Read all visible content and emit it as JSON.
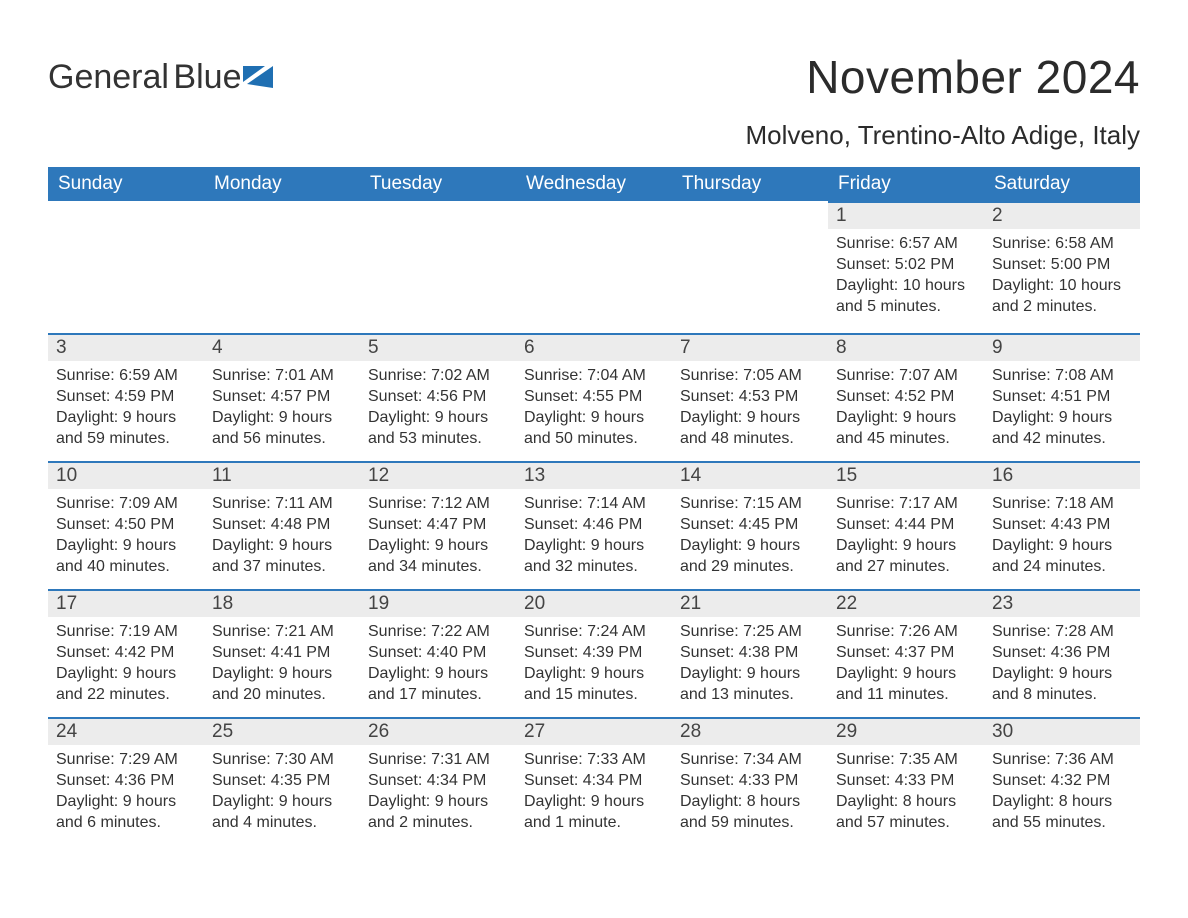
{
  "logo": {
    "text_top": "General",
    "text_bottom": "Blue",
    "mark_color": "#1f6fb2",
    "top_color": "#333333",
    "bottom_color": "#1f6fb2"
  },
  "title": "November 2024",
  "location": "Molveno, Trentino-Alto Adige, Italy",
  "colors": {
    "header_bg": "#2e78bb",
    "header_text": "#ffffff",
    "daynum_bg": "#ececec",
    "daynum_border": "#2e78bb",
    "body_text": "#333333",
    "page_bg": "#ffffff"
  },
  "weekdays": [
    "Sunday",
    "Monday",
    "Tuesday",
    "Wednesday",
    "Thursday",
    "Friday",
    "Saturday"
  ],
  "weeks": [
    [
      {
        "empty": true
      },
      {
        "empty": true
      },
      {
        "empty": true
      },
      {
        "empty": true
      },
      {
        "empty": true
      },
      {
        "day": "1",
        "sunrise": "Sunrise: 6:57 AM",
        "sunset": "Sunset: 5:02 PM",
        "daylight1": "Daylight: 10 hours",
        "daylight2": "and 5 minutes."
      },
      {
        "day": "2",
        "sunrise": "Sunrise: 6:58 AM",
        "sunset": "Sunset: 5:00 PM",
        "daylight1": "Daylight: 10 hours",
        "daylight2": "and 2 minutes."
      }
    ],
    [
      {
        "day": "3",
        "sunrise": "Sunrise: 6:59 AM",
        "sunset": "Sunset: 4:59 PM",
        "daylight1": "Daylight: 9 hours",
        "daylight2": "and 59 minutes."
      },
      {
        "day": "4",
        "sunrise": "Sunrise: 7:01 AM",
        "sunset": "Sunset: 4:57 PM",
        "daylight1": "Daylight: 9 hours",
        "daylight2": "and 56 minutes."
      },
      {
        "day": "5",
        "sunrise": "Sunrise: 7:02 AM",
        "sunset": "Sunset: 4:56 PM",
        "daylight1": "Daylight: 9 hours",
        "daylight2": "and 53 minutes."
      },
      {
        "day": "6",
        "sunrise": "Sunrise: 7:04 AM",
        "sunset": "Sunset: 4:55 PM",
        "daylight1": "Daylight: 9 hours",
        "daylight2": "and 50 minutes."
      },
      {
        "day": "7",
        "sunrise": "Sunrise: 7:05 AM",
        "sunset": "Sunset: 4:53 PM",
        "daylight1": "Daylight: 9 hours",
        "daylight2": "and 48 minutes."
      },
      {
        "day": "8",
        "sunrise": "Sunrise: 7:07 AM",
        "sunset": "Sunset: 4:52 PM",
        "daylight1": "Daylight: 9 hours",
        "daylight2": "and 45 minutes."
      },
      {
        "day": "9",
        "sunrise": "Sunrise: 7:08 AM",
        "sunset": "Sunset: 4:51 PM",
        "daylight1": "Daylight: 9 hours",
        "daylight2": "and 42 minutes."
      }
    ],
    [
      {
        "day": "10",
        "sunrise": "Sunrise: 7:09 AM",
        "sunset": "Sunset: 4:50 PM",
        "daylight1": "Daylight: 9 hours",
        "daylight2": "and 40 minutes."
      },
      {
        "day": "11",
        "sunrise": "Sunrise: 7:11 AM",
        "sunset": "Sunset: 4:48 PM",
        "daylight1": "Daylight: 9 hours",
        "daylight2": "and 37 minutes."
      },
      {
        "day": "12",
        "sunrise": "Sunrise: 7:12 AM",
        "sunset": "Sunset: 4:47 PM",
        "daylight1": "Daylight: 9 hours",
        "daylight2": "and 34 minutes."
      },
      {
        "day": "13",
        "sunrise": "Sunrise: 7:14 AM",
        "sunset": "Sunset: 4:46 PM",
        "daylight1": "Daylight: 9 hours",
        "daylight2": "and 32 minutes."
      },
      {
        "day": "14",
        "sunrise": "Sunrise: 7:15 AM",
        "sunset": "Sunset: 4:45 PM",
        "daylight1": "Daylight: 9 hours",
        "daylight2": "and 29 minutes."
      },
      {
        "day": "15",
        "sunrise": "Sunrise: 7:17 AM",
        "sunset": "Sunset: 4:44 PM",
        "daylight1": "Daylight: 9 hours",
        "daylight2": "and 27 minutes."
      },
      {
        "day": "16",
        "sunrise": "Sunrise: 7:18 AM",
        "sunset": "Sunset: 4:43 PM",
        "daylight1": "Daylight: 9 hours",
        "daylight2": "and 24 minutes."
      }
    ],
    [
      {
        "day": "17",
        "sunrise": "Sunrise: 7:19 AM",
        "sunset": "Sunset: 4:42 PM",
        "daylight1": "Daylight: 9 hours",
        "daylight2": "and 22 minutes."
      },
      {
        "day": "18",
        "sunrise": "Sunrise: 7:21 AM",
        "sunset": "Sunset: 4:41 PM",
        "daylight1": "Daylight: 9 hours",
        "daylight2": "and 20 minutes."
      },
      {
        "day": "19",
        "sunrise": "Sunrise: 7:22 AM",
        "sunset": "Sunset: 4:40 PM",
        "daylight1": "Daylight: 9 hours",
        "daylight2": "and 17 minutes."
      },
      {
        "day": "20",
        "sunrise": "Sunrise: 7:24 AM",
        "sunset": "Sunset: 4:39 PM",
        "daylight1": "Daylight: 9 hours",
        "daylight2": "and 15 minutes."
      },
      {
        "day": "21",
        "sunrise": "Sunrise: 7:25 AM",
        "sunset": "Sunset: 4:38 PM",
        "daylight1": "Daylight: 9 hours",
        "daylight2": "and 13 minutes."
      },
      {
        "day": "22",
        "sunrise": "Sunrise: 7:26 AM",
        "sunset": "Sunset: 4:37 PM",
        "daylight1": "Daylight: 9 hours",
        "daylight2": "and 11 minutes."
      },
      {
        "day": "23",
        "sunrise": "Sunrise: 7:28 AM",
        "sunset": "Sunset: 4:36 PM",
        "daylight1": "Daylight: 9 hours",
        "daylight2": "and 8 minutes."
      }
    ],
    [
      {
        "day": "24",
        "sunrise": "Sunrise: 7:29 AM",
        "sunset": "Sunset: 4:36 PM",
        "daylight1": "Daylight: 9 hours",
        "daylight2": "and 6 minutes."
      },
      {
        "day": "25",
        "sunrise": "Sunrise: 7:30 AM",
        "sunset": "Sunset: 4:35 PM",
        "daylight1": "Daylight: 9 hours",
        "daylight2": "and 4 minutes."
      },
      {
        "day": "26",
        "sunrise": "Sunrise: 7:31 AM",
        "sunset": "Sunset: 4:34 PM",
        "daylight1": "Daylight: 9 hours",
        "daylight2": "and 2 minutes."
      },
      {
        "day": "27",
        "sunrise": "Sunrise: 7:33 AM",
        "sunset": "Sunset: 4:34 PM",
        "daylight1": "Daylight: 9 hours",
        "daylight2": "and 1 minute."
      },
      {
        "day": "28",
        "sunrise": "Sunrise: 7:34 AM",
        "sunset": "Sunset: 4:33 PM",
        "daylight1": "Daylight: 8 hours",
        "daylight2": "and 59 minutes."
      },
      {
        "day": "29",
        "sunrise": "Sunrise: 7:35 AM",
        "sunset": "Sunset: 4:33 PM",
        "daylight1": "Daylight: 8 hours",
        "daylight2": "and 57 minutes."
      },
      {
        "day": "30",
        "sunrise": "Sunrise: 7:36 AM",
        "sunset": "Sunset: 4:32 PM",
        "daylight1": "Daylight: 8 hours",
        "daylight2": "and 55 minutes."
      }
    ]
  ]
}
